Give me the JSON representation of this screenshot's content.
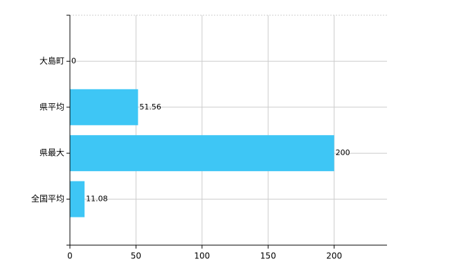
{
  "chart_data": {
    "type": "barh",
    "categories": [
      "大島町",
      "県平均",
      "県最大",
      "全国平均"
    ],
    "values": [
      0,
      51.56,
      200,
      11.08
    ],
    "color": "#3ec6f5",
    "xlim": [
      0,
      240
    ],
    "xticks": [
      0,
      50,
      100,
      150,
      200
    ],
    "grid": true
  }
}
